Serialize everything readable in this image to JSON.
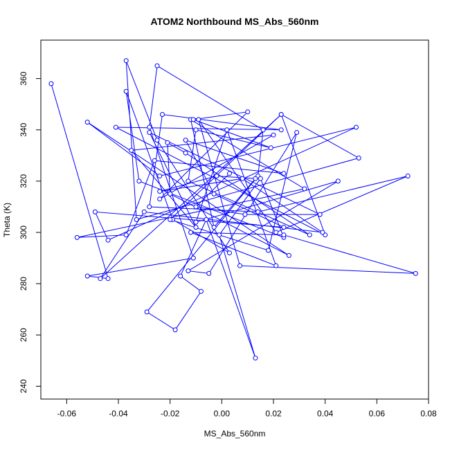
{
  "chart_data": {
    "type": "line",
    "title": "ATOM2 Northbound MS_Abs_560nm",
    "xlabel": "MS_Abs_560nm",
    "ylabel": "Theta (K)",
    "xlim": [
      -0.07,
      0.08
    ],
    "ylim": [
      235,
      375
    ],
    "x_ticks": [
      -0.06,
      -0.04,
      -0.02,
      0.0,
      0.02,
      0.04,
      0.06,
      0.08
    ],
    "x_tick_labels": [
      "-0.06",
      "-0.04",
      "-0.02",
      "0.00",
      "0.02",
      "0.04",
      "0.06",
      "0.08"
    ],
    "y_ticks": [
      240,
      260,
      280,
      300,
      320,
      340,
      360
    ],
    "y_tick_labels": [
      "240",
      "260",
      "280",
      "300",
      "320",
      "340",
      "360"
    ],
    "grid": false,
    "legend": "none",
    "series_color": "#0000FF",
    "marker": "open-circle",
    "x": [
      -0.066,
      -0.044,
      -0.052,
      -0.011,
      -0.028,
      -0.025,
      0.016,
      0.014,
      -0.029,
      -0.018,
      -0.008,
      -0.016,
      -0.006,
      0.013,
      -0.001,
      0.015,
      0.024,
      -0.032,
      -0.037,
      -0.019,
      0.003,
      -0.025,
      -0.037,
      -0.033,
      0.053,
      0.023,
      -0.02,
      0.018,
      0.029,
      -0.005,
      -0.013,
      0.045,
      -0.01,
      0.002,
      0.021,
      -0.012,
      0.024,
      0.075,
      0.007,
      -0.009,
      0.021,
      0.072,
      0.014,
      -0.028,
      -0.023,
      0.023,
      -0.041,
      0.04,
      0.023,
      -0.047,
      -0.03,
      0.039,
      0.008,
      -0.024,
      -0.002,
      0.013,
      -0.003,
      -0.012,
      0.032,
      -0.056,
      -0.037,
      -0.026,
      0.024,
      -0.014,
      -0.003,
      0.024,
      -0.049,
      -0.044,
      0.052,
      -0.024,
      -0.052,
      0.026,
      -0.02,
      -0.021,
      -0.014,
      0.034,
      -0.013,
      -0.01,
      0.019,
      -0.011,
      0.01,
      -0.024,
      0.02,
      -0.035,
      -0.01,
      -0.028,
      0.038,
      0.009,
      -0.01,
      0.003
    ],
    "y": [
      358,
      282,
      283,
      290,
      341,
      365,
      340,
      322,
      269,
      262,
      277,
      283,
      305,
      251,
      299,
      321,
      298,
      320,
      355,
      305,
      292,
      336,
      367,
      305,
      329,
      346,
      305,
      293,
      339,
      284,
      285,
      320,
      304,
      340,
      287,
      300,
      299,
      284,
      287,
      344,
      300,
      322,
      308,
      310,
      346,
      340,
      341,
      299,
      346,
      282,
      308,
      300,
      321,
      316,
      322,
      321,
      302,
      344,
      317,
      298,
      299,
      328,
      323,
      336,
      315,
      302,
      308,
      297,
      341,
      322,
      343,
      291,
      315,
      335,
      331,
      299,
      320,
      340,
      333,
      344,
      347,
      313,
      338,
      332,
      302,
      339,
      307,
      307,
      310,
      323
    ]
  }
}
